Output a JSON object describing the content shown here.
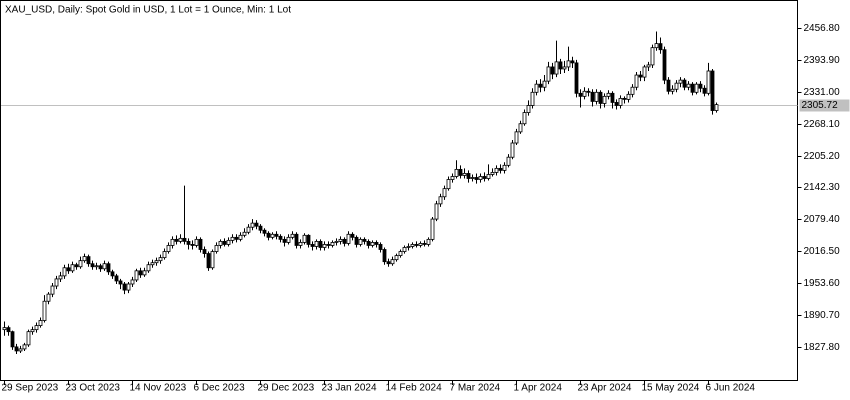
{
  "chart_data": {
    "type": "candlestick",
    "title": "XAU_USD, Daily:  Spot Gold in USD, 1 Lot = 1 Ounce, Min: 1 Lot",
    "categories": [
      "29 Sep 2023",
      null,
      null,
      null,
      null,
      null,
      null,
      null,
      null,
      null,
      null,
      null,
      null,
      null,
      null,
      null,
      "23 Oct 2023",
      null,
      null,
      null,
      null,
      null,
      null,
      null,
      null,
      null,
      null,
      null,
      null,
      null,
      null,
      null,
      "14 Nov 2023",
      null,
      null,
      null,
      null,
      null,
      null,
      null,
      null,
      null,
      null,
      null,
      null,
      null,
      null,
      null,
      "6 Dec 2023",
      null,
      null,
      null,
      null,
      null,
      null,
      null,
      null,
      null,
      null,
      null,
      null,
      null,
      null,
      null,
      "29 Dec 2023",
      null,
      null,
      null,
      null,
      null,
      null,
      null,
      null,
      null,
      null,
      null,
      null,
      null,
      null,
      null,
      "23 Jan 2024",
      null,
      null,
      null,
      null,
      null,
      null,
      null,
      null,
      null,
      null,
      null,
      null,
      null,
      null,
      null,
      "14 Feb 2024",
      null,
      null,
      null,
      null,
      null,
      null,
      null,
      null,
      null,
      null,
      null,
      null,
      null,
      null,
      null,
      "7 Mar 2024",
      null,
      null,
      null,
      null,
      null,
      null,
      null,
      null,
      null,
      null,
      null,
      null,
      null,
      null,
      null,
      "1 Apr 2024",
      null,
      null,
      null,
      null,
      null,
      null,
      null,
      null,
      null,
      null,
      null,
      null,
      null,
      null,
      null,
      "23 Apr 2024",
      null,
      null,
      null,
      null,
      null,
      null,
      null,
      null,
      null,
      null,
      null,
      null,
      null,
      null,
      null,
      "15 May 2024",
      null,
      null,
      null,
      null,
      null,
      null,
      null,
      null,
      null,
      null,
      null,
      null,
      null,
      null,
      null,
      "6 Jun 2024",
      null,
      null
    ],
    "open": [
      1862,
      1866,
      1858,
      1828,
      1820,
      1824,
      1832,
      1858,
      1862,
      1870,
      1880,
      1918,
      1932,
      1948,
      1962,
      1968,
      1984,
      1978,
      1990,
      1986,
      1998,
      2006,
      1992,
      1986,
      1988,
      1982,
      1992,
      1976,
      1968,
      1958,
      1952,
      1940,
      1952,
      1960,
      1978,
      1970,
      1978,
      1990,
      1994,
      1998,
      2004,
      2016,
      2028,
      2040,
      2036,
      2042,
      2036,
      2030,
      2028,
      2040,
      2020,
      2012,
      1984,
      2016,
      2028,
      2036,
      2030,
      2038,
      2044,
      2040,
      2048,
      2054,
      2064,
      2072,
      2066,
      2058,
      2052,
      2044,
      2050,
      2046,
      2040,
      2034,
      2044,
      2050,
      2028,
      2034,
      2048,
      2030,
      2026,
      2036,
      2024,
      2030,
      2028,
      2034,
      2036,
      2040,
      2032,
      2050,
      2044,
      2030,
      2040,
      2036,
      2028,
      2034,
      2030,
      2020,
      1996,
      1992,
      2000,
      2008,
      2016,
      2024,
      2026,
      2030,
      2028,
      2032,
      2030,
      2040,
      2080,
      2110,
      2124,
      2140,
      2158,
      2164,
      2178,
      2166,
      2170,
      2160,
      2162,
      2158,
      2164,
      2160,
      2168,
      2172,
      2180,
      2176,
      2186,
      2202,
      2230,
      2252,
      2268,
      2290,
      2304,
      2330,
      2346,
      2340,
      2352,
      2380,
      2366,
      2390,
      2376,
      2380,
      2392,
      2388,
      2328,
      2322,
      2332,
      2330,
      2312,
      2330,
      2308,
      2322,
      2328,
      2310,
      2304,
      2318,
      2316,
      2326,
      2340,
      2364,
      2360,
      2380,
      2384,
      2418,
      2426,
      2414,
      2354,
      2332,
      2336,
      2348,
      2354,
      2340,
      2346,
      2330,
      2346,
      2338,
      2328,
      2372,
      2294
    ],
    "high": [
      1878,
      1870,
      1860,
      1834,
      1830,
      1836,
      1862,
      1868,
      1876,
      1886,
      1930,
      1936,
      1954,
      1968,
      1976,
      1990,
      1992,
      1996,
      1994,
      2006,
      2012,
      2010,
      1998,
      1994,
      1992,
      1998,
      1996,
      1980,
      1972,
      1962,
      1956,
      1956,
      1966,
      1982,
      1984,
      1984,
      1996,
      2000,
      2004,
      2010,
      2022,
      2034,
      2046,
      2048,
      2050,
      2146,
      2042,
      2038,
      2046,
      2044,
      2026,
      2016,
      2020,
      2034,
      2040,
      2042,
      2044,
      2050,
      2050,
      2054,
      2062,
      2070,
      2080,
      2078,
      2070,
      2062,
      2056,
      2054,
      2056,
      2050,
      2046,
      2050,
      2056,
      2054,
      2040,
      2052,
      2050,
      2036,
      2040,
      2040,
      2036,
      2036,
      2038,
      2042,
      2046,
      2044,
      2056,
      2054,
      2048,
      2044,
      2044,
      2040,
      2038,
      2038,
      2034,
      2024,
      2002,
      2006,
      2012,
      2020,
      2028,
      2032,
      2034,
      2036,
      2036,
      2038,
      2044,
      2084,
      2116,
      2130,
      2146,
      2164,
      2170,
      2196,
      2186,
      2180,
      2176,
      2168,
      2170,
      2170,
      2172,
      2188,
      2180,
      2186,
      2188,
      2192,
      2208,
      2236,
      2258,
      2274,
      2296,
      2314,
      2338,
      2354,
      2356,
      2364,
      2390,
      2388,
      2432,
      2396,
      2392,
      2420,
      2400,
      2394,
      2336,
      2340,
      2338,
      2336,
      2336,
      2334,
      2328,
      2334,
      2332,
      2316,
      2324,
      2322,
      2332,
      2346,
      2370,
      2372,
      2384,
      2390,
      2424,
      2450,
      2438,
      2420,
      2360,
      2344,
      2354,
      2360,
      2358,
      2352,
      2350,
      2350,
      2352,
      2344,
      2388,
      2376,
      2310
    ],
    "low": [
      1850,
      1850,
      1822,
      1814,
      1816,
      1820,
      1828,
      1852,
      1856,
      1866,
      1876,
      1912,
      1926,
      1942,
      1956,
      1962,
      1972,
      1974,
      1980,
      1982,
      1994,
      1986,
      1980,
      1980,
      1976,
      1978,
      1970,
      1962,
      1952,
      1942,
      1932,
      1934,
      1946,
      1956,
      1964,
      1966,
      1974,
      1984,
      1988,
      1992,
      2000,
      2012,
      2022,
      2030,
      2032,
      2030,
      2020,
      2020,
      2024,
      2014,
      2004,
      1978,
      1980,
      2012,
      2022,
      2026,
      2026,
      2032,
      2034,
      2036,
      2044,
      2050,
      2058,
      2060,
      2052,
      2046,
      2038,
      2040,
      2040,
      2034,
      2026,
      2030,
      2040,
      2022,
      2022,
      2030,
      2024,
      2018,
      2020,
      2018,
      2018,
      2022,
      2024,
      2028,
      2030,
      2026,
      2028,
      2038,
      2024,
      2026,
      2030,
      2022,
      2024,
      2024,
      2014,
      1990,
      1986,
      1988,
      1996,
      2004,
      2012,
      2018,
      2022,
      2024,
      2024,
      2026,
      2026,
      2036,
      2076,
      2104,
      2118,
      2136,
      2152,
      2160,
      2160,
      2160,
      2152,
      2154,
      2150,
      2152,
      2154,
      2156,
      2164,
      2166,
      2170,
      2170,
      2182,
      2198,
      2226,
      2248,
      2264,
      2284,
      2298,
      2324,
      2330,
      2332,
      2346,
      2356,
      2360,
      2366,
      2368,
      2372,
      2378,
      2320,
      2300,
      2316,
      2322,
      2302,
      2306,
      2298,
      2300,
      2316,
      2298,
      2296,
      2298,
      2308,
      2310,
      2320,
      2334,
      2352,
      2352,
      2372,
      2378,
      2412,
      2406,
      2346,
      2326,
      2326,
      2330,
      2340,
      2334,
      2334,
      2324,
      2326,
      2330,
      2322,
      2324,
      2286,
      2290
    ],
    "close": [
      1866,
      1858,
      1828,
      1820,
      1824,
      1832,
      1858,
      1862,
      1870,
      1880,
      1918,
      1932,
      1948,
      1962,
      1968,
      1984,
      1978,
      1990,
      1986,
      1998,
      2006,
      1992,
      1986,
      1988,
      1982,
      1992,
      1976,
      1968,
      1958,
      1952,
      1940,
      1952,
      1960,
      1978,
      1970,
      1978,
      1990,
      1994,
      1998,
      2004,
      2016,
      2028,
      2040,
      2036,
      2042,
      2036,
      2030,
      2028,
      2040,
      2020,
      2012,
      1984,
      2016,
      2028,
      2036,
      2030,
      2038,
      2044,
      2040,
      2048,
      2054,
      2064,
      2072,
      2066,
      2058,
      2052,
      2044,
      2050,
      2046,
      2040,
      2034,
      2044,
      2050,
      2028,
      2034,
      2048,
      2030,
      2026,
      2036,
      2024,
      2030,
      2028,
      2034,
      2036,
      2040,
      2032,
      2050,
      2044,
      2030,
      2040,
      2036,
      2028,
      2034,
      2030,
      2020,
      1996,
      1992,
      2000,
      2008,
      2016,
      2024,
      2026,
      2030,
      2028,
      2032,
      2030,
      2040,
      2080,
      2110,
      2124,
      2140,
      2158,
      2164,
      2178,
      2166,
      2170,
      2160,
      2162,
      2158,
      2164,
      2160,
      2168,
      2172,
      2180,
      2176,
      2186,
      2202,
      2230,
      2252,
      2268,
      2290,
      2304,
      2330,
      2346,
      2340,
      2352,
      2380,
      2366,
      2390,
      2376,
      2380,
      2392,
      2388,
      2328,
      2322,
      2332,
      2330,
      2312,
      2330,
      2308,
      2322,
      2328,
      2310,
      2304,
      2318,
      2316,
      2326,
      2340,
      2364,
      2360,
      2380,
      2384,
      2418,
      2426,
      2414,
      2354,
      2332,
      2336,
      2348,
      2354,
      2340,
      2346,
      2330,
      2346,
      2338,
      2328,
      2372,
      2294,
      2305.72
    ],
    "up_color": "#ffffff",
    "down_color": "#000000",
    "outline_color": "#000000",
    "current_price": 2305.72,
    "ylim": [
      1762.7,
      2512.0
    ],
    "yticks": [
      {
        "value": 2456.8,
        "label": "2456.80"
      },
      {
        "value": 2393.9,
        "label": "2393.90"
      },
      {
        "value": 2331.0,
        "label": "2331.00"
      },
      {
        "value": 2268.1,
        "label": "2268.10"
      },
      {
        "value": 2205.2,
        "label": "2205.20"
      },
      {
        "value": 2142.3,
        "label": "2142.30"
      },
      {
        "value": 2079.4,
        "label": "2079.40"
      },
      {
        "value": 2016.5,
        "label": "2016.50"
      },
      {
        "value": 1953.6,
        "label": "1953.60"
      },
      {
        "value": 1890.7,
        "label": "1890.70"
      },
      {
        "value": 1827.8,
        "label": "1827.80"
      }
    ],
    "grid": false
  }
}
